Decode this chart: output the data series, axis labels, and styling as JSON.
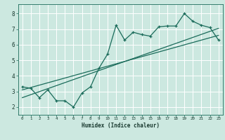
{
  "title": "",
  "xlabel": "Humidex (Indice chaleur)",
  "ylabel": "",
  "bg_color": "#cce8e0",
  "grid_color": "#ffffff",
  "line_color": "#1a6b5a",
  "xlim": [
    -0.5,
    23.5
  ],
  "ylim": [
    1.5,
    8.6
  ],
  "x_data": [
    0,
    1,
    2,
    3,
    4,
    5,
    6,
    7,
    8,
    9,
    10,
    11,
    12,
    13,
    14,
    15,
    16,
    17,
    18,
    19,
    20,
    21,
    22,
    23
  ],
  "y_data": [
    3.3,
    3.2,
    2.6,
    3.1,
    2.4,
    2.4,
    2.0,
    2.9,
    3.3,
    4.5,
    5.4,
    7.25,
    6.3,
    6.8,
    6.65,
    6.55,
    7.15,
    7.2,
    7.2,
    8.0,
    7.5,
    7.25,
    7.1,
    6.3
  ],
  "trend1_x": [
    0,
    23
  ],
  "trend1_y": [
    3.1,
    6.6
  ],
  "trend2_x": [
    0,
    23
  ],
  "trend2_y": [
    2.6,
    7.05
  ],
  "xticks": [
    0,
    1,
    2,
    3,
    4,
    5,
    6,
    7,
    8,
    9,
    10,
    11,
    12,
    13,
    14,
    15,
    16,
    17,
    18,
    19,
    20,
    21,
    22,
    23
  ],
  "yticks": [
    2,
    3,
    4,
    5,
    6,
    7,
    8
  ]
}
